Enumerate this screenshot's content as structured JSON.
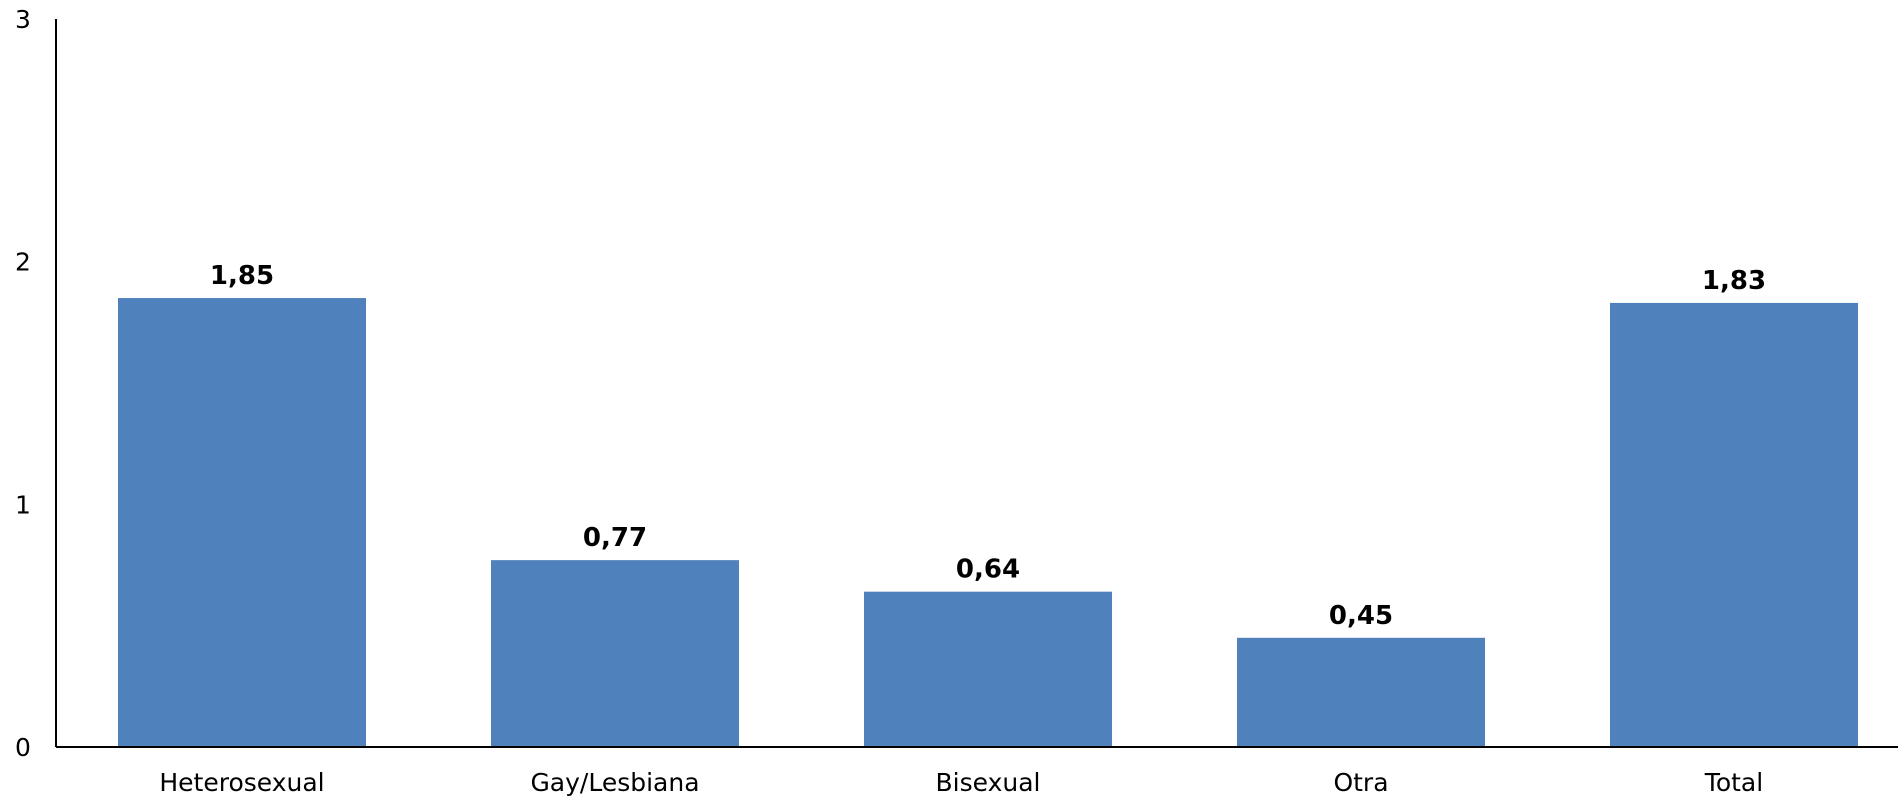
{
  "chart_data": {
    "type": "bar",
    "categories": [
      "Heterosexual",
      "Gay/Lesbiana",
      "Bisexual",
      "Otra",
      "Total"
    ],
    "values": [
      1.85,
      0.77,
      0.64,
      0.45,
      1.83
    ],
    "data_labels": [
      "1,85",
      "0,77",
      "0,64",
      "0,45",
      "1,83"
    ],
    "ylim": [
      0,
      3
    ],
    "yticks": [
      0,
      1,
      2,
      3
    ],
    "ytick_labels": [
      "0",
      "1",
      "2",
      "3"
    ],
    "grid": false,
    "legend": "none",
    "bar_color": "#4F81BD",
    "title": "",
    "xlabel": "",
    "ylabel": ""
  }
}
